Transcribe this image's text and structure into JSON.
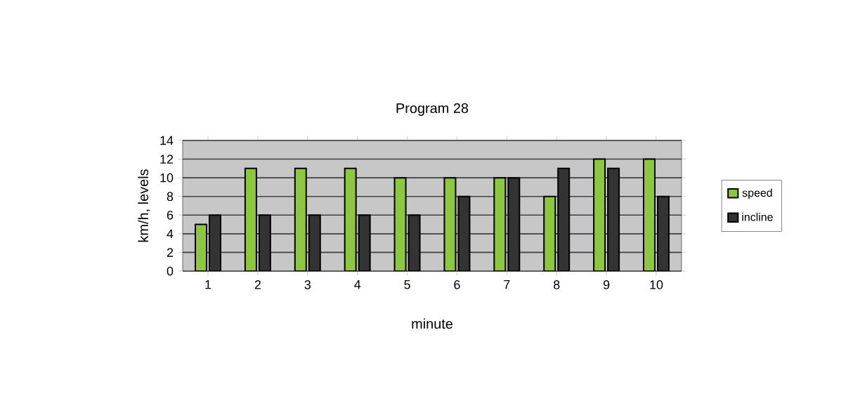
{
  "chart_data": {
    "type": "bar",
    "title": "Program 28",
    "xlabel": "minute",
    "ylabel": "km/h, levels",
    "categories": [
      "1",
      "2",
      "3",
      "4",
      "5",
      "6",
      "7",
      "8",
      "9",
      "10"
    ],
    "series": [
      {
        "name": "speed",
        "color": "#8dc63f",
        "values": [
          5,
          11,
          11,
          11,
          10,
          10,
          10,
          8,
          12,
          12
        ]
      },
      {
        "name": "incline",
        "color": "#333333",
        "values": [
          6,
          6,
          6,
          6,
          6,
          8,
          10,
          11,
          11,
          8
        ]
      }
    ],
    "ylim": [
      0,
      14
    ],
    "yticks": [
      0,
      2,
      4,
      6,
      8,
      10,
      12,
      14
    ],
    "grid": "y",
    "legend": "right"
  }
}
